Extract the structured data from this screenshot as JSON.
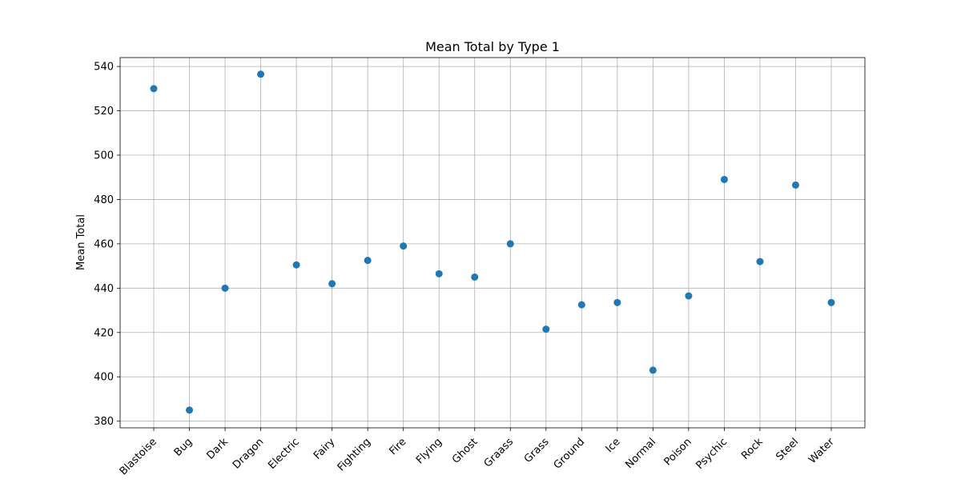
{
  "chart_data": {
    "type": "scatter",
    "title": "Mean Total by Type 1",
    "xlabel": "",
    "ylabel": "Mean Total",
    "categories": [
      "Blastoise",
      "Bug",
      "Dark",
      "Dragon",
      "Electric",
      "Fairy",
      "Fighting",
      "Fire",
      "Flying",
      "Ghost",
      "Graass",
      "Grass",
      "Ground",
      "Ice",
      "Normal",
      "Poison",
      "Psychic",
      "Rock",
      "Steel",
      "Water"
    ],
    "values": [
      530,
      385,
      440,
      536.5,
      450.5,
      442,
      452.5,
      459,
      446.5,
      445,
      460,
      421.5,
      432.5,
      433.5,
      403,
      436.5,
      489,
      452,
      486.5,
      433.5
    ],
    "ylim": [
      377,
      544
    ],
    "yticks": [
      380,
      400,
      420,
      440,
      460,
      480,
      500,
      520,
      540
    ],
    "grid": true,
    "marker_color": "#1f77b4"
  }
}
